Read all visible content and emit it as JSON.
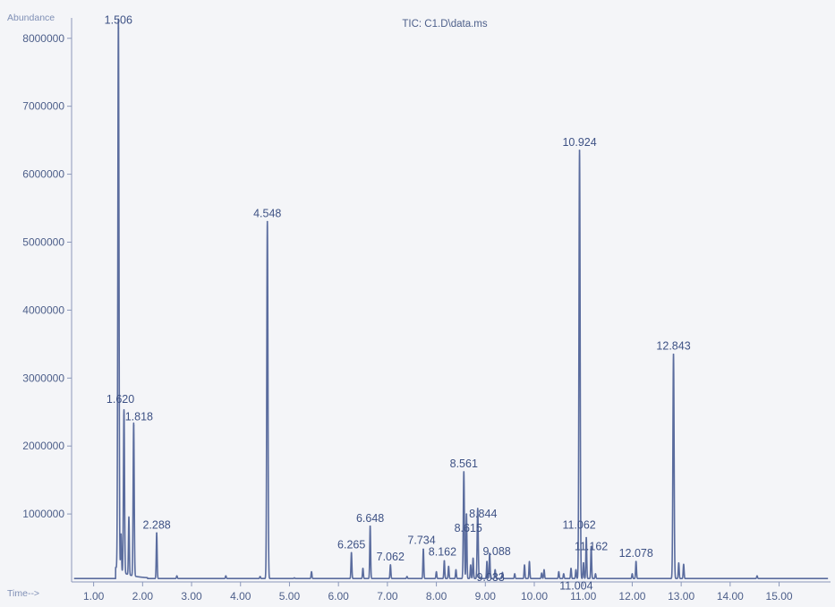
{
  "chart_data": {
    "type": "line",
    "title": "TIC: C1.D\\data.ms",
    "ylabel": "Abundance",
    "xlabel": "Time-->",
    "xlim": [
      0.55,
      16.05
    ],
    "ylim": [
      0,
      8300000
    ],
    "xticks": [
      "1.00",
      "2.00",
      "3.00",
      "4.00",
      "5.00",
      "6.00",
      "7.00",
      "8.00",
      "9.00",
      "10.00",
      "11.00",
      "12.00",
      "13.00",
      "14.00",
      "15.00"
    ],
    "yticks": [
      "1000000",
      "2000000",
      "3000000",
      "4000000",
      "5000000",
      "6000000",
      "7000000",
      "8000000"
    ],
    "baseline": 50000,
    "line_color": "#5a6c9e",
    "peaks": [
      {
        "rt": 1.506,
        "abundance": 8150000,
        "label": "1.506"
      },
      {
        "rt": 1.62,
        "abundance": 2450000,
        "label": "1.620"
      },
      {
        "rt": 1.818,
        "abundance": 2300000,
        "label": "1.818"
      },
      {
        "rt": 2.288,
        "abundance": 720000,
        "label": "2.288"
      },
      {
        "rt": 4.548,
        "abundance": 5300000,
        "label": "4.548"
      },
      {
        "rt": 6.265,
        "abundance": 430000,
        "label": "6.265"
      },
      {
        "rt": 6.648,
        "abundance": 820000,
        "label": "6.648"
      },
      {
        "rt": 7.062,
        "abundance": 250000,
        "label": "7.062"
      },
      {
        "rt": 7.734,
        "abundance": 480000,
        "label": "7.734"
      },
      {
        "rt": 8.162,
        "abundance": 310000,
        "label": "8.162"
      },
      {
        "rt": 8.561,
        "abundance": 1620000,
        "label": "8.561"
      },
      {
        "rt": 8.615,
        "abundance": 1000000,
        "label": "8.615"
      },
      {
        "rt": 8.844,
        "abundance": 1080000,
        "label": "8.844"
      },
      {
        "rt": 9.033,
        "abundance": 300000,
        "label": "9.033"
      },
      {
        "rt": 9.088,
        "abundance": 420000,
        "label": "9.088"
      },
      {
        "rt": 10.924,
        "abundance": 6350000,
        "label": "10.924"
      },
      {
        "rt": 11.004,
        "abundance": 280000,
        "label": "11.004"
      },
      {
        "rt": 11.062,
        "abundance": 650000,
        "label": "11.062"
      },
      {
        "rt": 11.162,
        "abundance": 520000,
        "label": "11.162"
      },
      {
        "rt": 12.078,
        "abundance": 300000,
        "label": "12.078"
      },
      {
        "rt": 12.843,
        "abundance": 3350000,
        "label": "12.843"
      }
    ],
    "minor_peaks": [
      {
        "rt": 1.56,
        "abundance": 600000
      },
      {
        "rt": 1.72,
        "abundance": 900000
      },
      {
        "rt": 2.7,
        "abundance": 90000
      },
      {
        "rt": 3.7,
        "abundance": 90000
      },
      {
        "rt": 4.4,
        "abundance": 80000
      },
      {
        "rt": 5.1,
        "abundance": 60000
      },
      {
        "rt": 5.45,
        "abundance": 150000
      },
      {
        "rt": 6.5,
        "abundance": 200000
      },
      {
        "rt": 7.4,
        "abundance": 80000
      },
      {
        "rt": 8.0,
        "abundance": 150000
      },
      {
        "rt": 8.25,
        "abundance": 230000
      },
      {
        "rt": 8.4,
        "abundance": 180000
      },
      {
        "rt": 8.7,
        "abundance": 250000
      },
      {
        "rt": 8.75,
        "abundance": 350000
      },
      {
        "rt": 9.2,
        "abundance": 180000
      },
      {
        "rt": 9.35,
        "abundance": 140000
      },
      {
        "rt": 9.6,
        "abundance": 120000
      },
      {
        "rt": 9.8,
        "abundance": 250000
      },
      {
        "rt": 9.9,
        "abundance": 300000
      },
      {
        "rt": 10.15,
        "abundance": 130000
      },
      {
        "rt": 10.2,
        "abundance": 180000
      },
      {
        "rt": 10.5,
        "abundance": 150000
      },
      {
        "rt": 10.6,
        "abundance": 120000
      },
      {
        "rt": 10.75,
        "abundance": 200000
      },
      {
        "rt": 10.85,
        "abundance": 180000
      },
      {
        "rt": 11.25,
        "abundance": 120000
      },
      {
        "rt": 12.0,
        "abundance": 120000
      },
      {
        "rt": 12.95,
        "abundance": 280000
      },
      {
        "rt": 13.05,
        "abundance": 260000
      },
      {
        "rt": 14.55,
        "abundance": 90000
      }
    ]
  }
}
